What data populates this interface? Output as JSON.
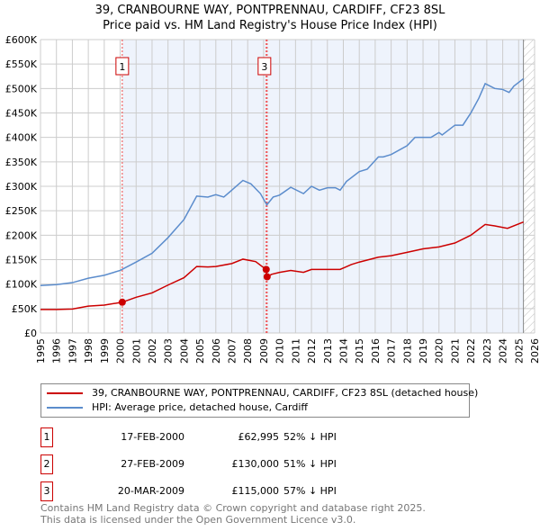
{
  "chart_data": {
    "type": "line",
    "title": "39, CRANBOURNE WAY, PONTPRENNAU, CARDIFF, CF23 8SL",
    "subtitle": "Price paid vs. HM Land Registry's House Price Index (HPI)",
    "xlim": [
      1995,
      2026
    ],
    "ylim": [
      0,
      600000
    ],
    "x_ticks": [
      "1995",
      "1996",
      "1997",
      "1998",
      "1999",
      "2000",
      "2001",
      "2002",
      "2003",
      "2004",
      "2005",
      "2006",
      "2007",
      "2008",
      "2009",
      "2010",
      "2011",
      "2012",
      "2013",
      "2014",
      "2015",
      "2016",
      "2017",
      "2018",
      "2019",
      "2020",
      "2021",
      "2022",
      "2023",
      "2024",
      "2025",
      "2026"
    ],
    "y_ticks": [
      "£0",
      "£50K",
      "£100K",
      "£150K",
      "£200K",
      "£250K",
      "£300K",
      "£350K",
      "£400K",
      "£450K",
      "£500K",
      "£550K",
      "£600K"
    ],
    "grid": true,
    "series": [
      {
        "name": "39, CRANBOURNE WAY, PONTPRENNAU, CARDIFF, CF23 8SL (detached house)",
        "color": "#cc0000",
        "x": [
          1995,
          1996,
          1997,
          1998,
          1999,
          2000.13,
          2001,
          2002,
          2003,
          2004,
          2004.8,
          2005.5,
          2006,
          2007,
          2007.7,
          2008.5,
          2009.15,
          2009.22,
          2009.5,
          2010,
          2010.7,
          2011.5,
          2012,
          2013,
          2013.8,
          2014.5,
          2015,
          2016.2,
          2017,
          2018,
          2019,
          2020,
          2021,
          2022,
          2022.9,
          2023.5,
          2024.3,
          2025.3
        ],
        "y": [
          48000,
          48000,
          49000,
          55000,
          57000,
          62995,
          73000,
          82000,
          98000,
          113000,
          136000,
          135000,
          136000,
          142000,
          151000,
          146000,
          130000,
          115000,
          120000,
          124000,
          128000,
          124000,
          130000,
          130000,
          130000,
          140000,
          145000,
          155000,
          158000,
          165000,
          172000,
          176000,
          184000,
          200000,
          222000,
          219000,
          214000,
          227000
        ]
      },
      {
        "name": "HPI: Average price, detached house, Cardiff",
        "color": "#5b8ccc",
        "x": [
          1995,
          1996,
          1997,
          1998,
          1999,
          2000,
          2001,
          2002,
          2003,
          2004,
          2004.8,
          2005.5,
          2006,
          2006.5,
          2007,
          2007.7,
          2008.2,
          2008.8,
          2009.2,
          2009.6,
          2010,
          2010.7,
          2011.5,
          2012,
          2012.5,
          2013,
          2013.5,
          2013.8,
          2014.2,
          2015,
          2015.5,
          2016.2,
          2016.5,
          2017,
          2018,
          2018.5,
          2019.5,
          2020,
          2020.2,
          2021,
          2021.5,
          2022,
          2022.5,
          2022.9,
          2023.5,
          2024,
          2024.4,
          2024.7,
          2025.1,
          2025.3
        ],
        "y": [
          97000,
          99000,
          103000,
          112000,
          118000,
          128000,
          145000,
          163000,
          195000,
          232000,
          280000,
          278000,
          283000,
          278000,
          292000,
          312000,
          305000,
          285000,
          262000,
          278000,
          282000,
          298000,
          285000,
          300000,
          292000,
          297000,
          297000,
          292000,
          310000,
          330000,
          335000,
          360000,
          360000,
          365000,
          383000,
          400000,
          400000,
          410000,
          405000,
          425000,
          425000,
          450000,
          480000,
          510000,
          500000,
          498000,
          492000,
          505000,
          515000,
          520000
        ]
      }
    ],
    "markers": [
      {
        "label": "1",
        "x": 2000.13
      },
      {
        "label": "2",
        "x": 2009.16
      },
      {
        "label": "3",
        "x": 2009.22
      }
    ],
    "shade_from": 2000.13,
    "data_end": 2025.3
  },
  "legend": {
    "red": "39, CRANBOURNE WAY, PONTPRENNAU, CARDIFF, CF23 8SL (detached house)",
    "blue": "HPI: Average price, detached house, Cardiff"
  },
  "transactions": [
    {
      "n": "1",
      "date": "17-FEB-2000",
      "price": "£62,995",
      "hpi": "52% ↓ HPI"
    },
    {
      "n": "2",
      "date": "27-FEB-2009",
      "price": "£130,000",
      "hpi": "51% ↓ HPI"
    },
    {
      "n": "3",
      "date": "20-MAR-2009",
      "price": "£115,000",
      "hpi": "57% ↓ HPI"
    }
  ],
  "footer": [
    "Contains HM Land Registry data © Crown copyright and database right 2025.",
    "This data is licensed under the Open Government Licence v3.0."
  ]
}
